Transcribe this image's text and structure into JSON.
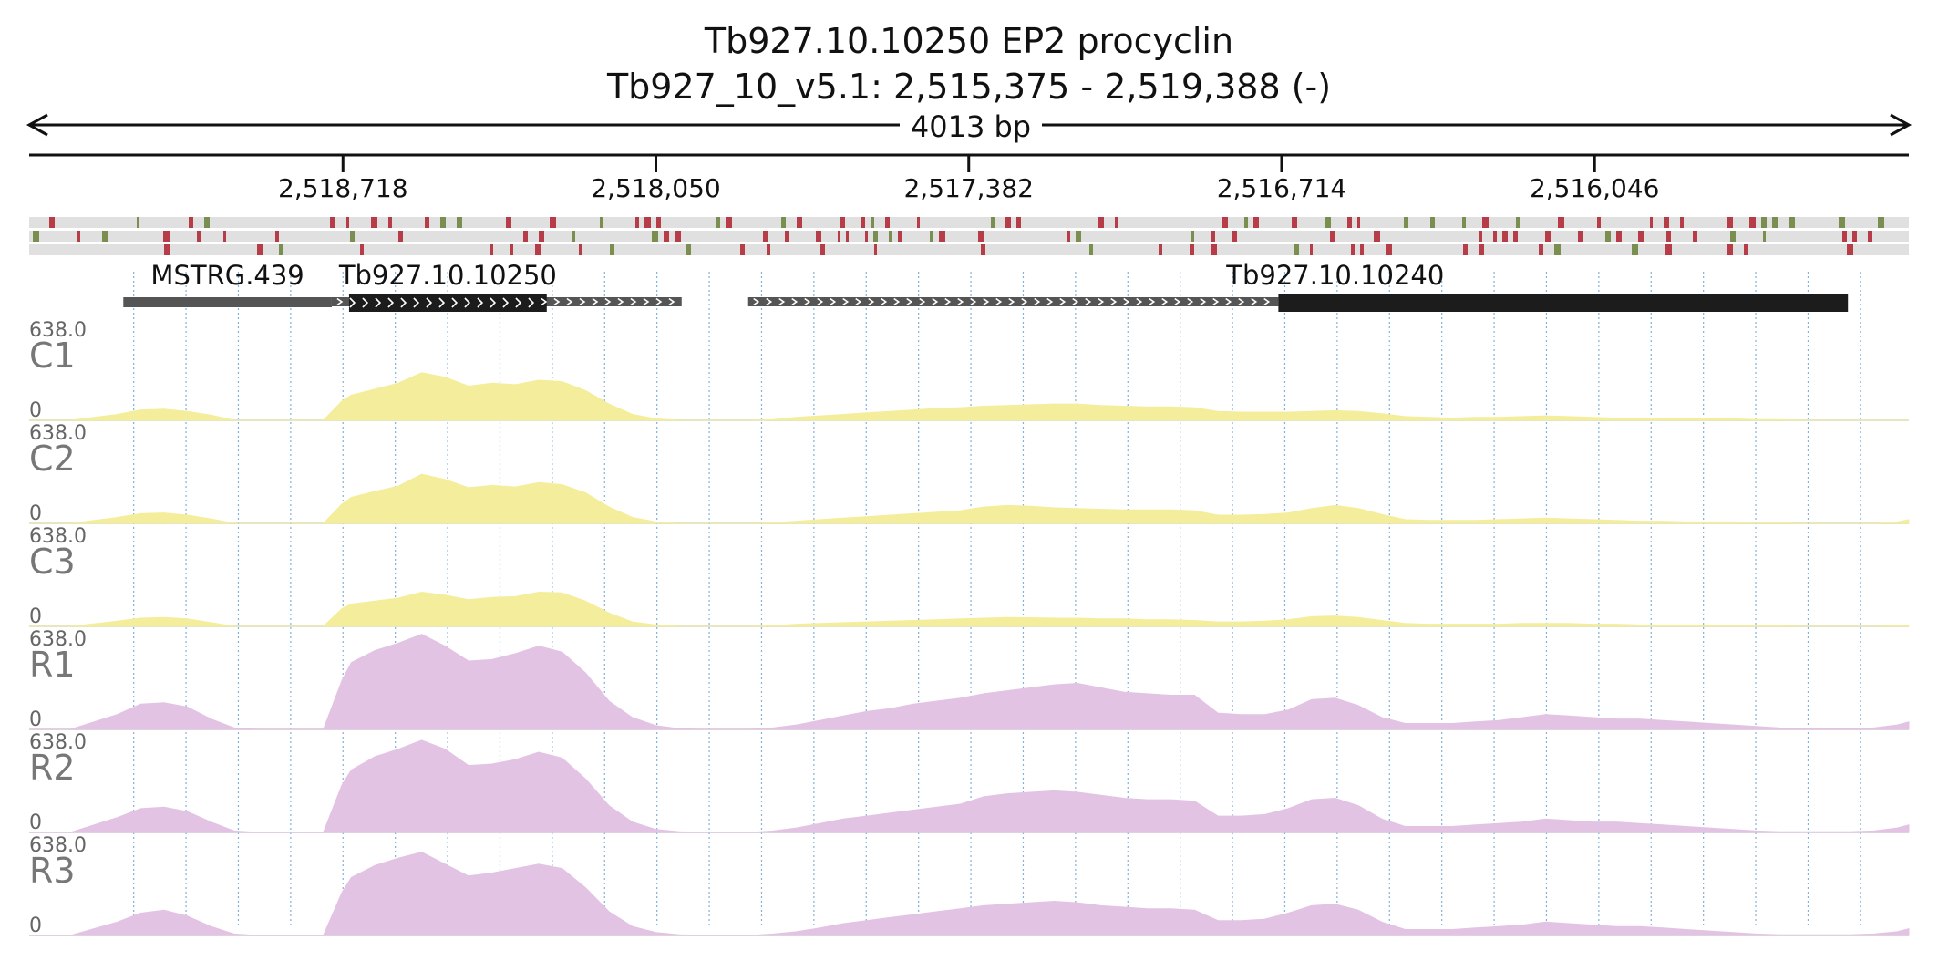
{
  "chart_data": {
    "type": "area",
    "title": "Tb927.10.10250  EP2 procyclin",
    "subtitle": "Tb927_10_v5.1: 2,515,375 - 2,519,388 (-)",
    "span_label": "4013 bp",
    "region": {
      "start": 2515375,
      "end": 2519388,
      "strand": "-"
    },
    "ruler_ticks": [
      {
        "pos": 2518718,
        "label": "2,518,718"
      },
      {
        "pos": 2518050,
        "label": "2,518,050"
      },
      {
        "pos": 2517382,
        "label": "2,517,382"
      },
      {
        "pos": 2516714,
        "label": "2,516,714"
      },
      {
        "pos": 2516046,
        "label": "2,516,046"
      }
    ],
    "frame_bars": {
      "colors": {
        "track": "#e0e0e0",
        "start": "#7a8f4f",
        "stop": "#b63d48"
      },
      "frames": [
        {
          "seed": 11,
          "density": 0.42
        },
        {
          "seed": 23,
          "density": 0.36
        },
        {
          "seed": 37,
          "density": 0.22
        }
      ]
    },
    "genes": [
      {
        "name": "MSTRG.439",
        "start": 2519187,
        "end": 2518742,
        "utr_start": null,
        "utr_end": null,
        "style": "plain"
      },
      {
        "name": "Tb927.10.10250",
        "start": 2518705,
        "end": 2518283,
        "utr_start": 2518742,
        "utr_end": 2517995,
        "style": "cds"
      },
      {
        "name": "Tb927.10.10240",
        "start": 2516721,
        "end": 2515505,
        "utr_start": 2517853,
        "utr_end": 2516721,
        "style": "cds"
      }
    ],
    "ymax_label": "638.0",
    "ymin_label": "0",
    "ylim": [
      0,
      638
    ],
    "x_positions": [
      2519388,
      2519300,
      2519200,
      2519150,
      2519100,
      2519050,
      2519000,
      2518950,
      2518900,
      2518850,
      2518800,
      2518760,
      2518720,
      2518700,
      2518650,
      2518600,
      2518550,
      2518500,
      2518450,
      2518400,
      2518350,
      2518300,
      2518250,
      2518200,
      2518150,
      2518100,
      2518050,
      2518000,
      2517950,
      2517900,
      2517850,
      2517800,
      2517750,
      2517700,
      2517650,
      2517600,
      2517550,
      2517500,
      2517450,
      2517400,
      2517350,
      2517300,
      2517250,
      2517200,
      2517150,
      2517100,
      2517050,
      2517000,
      2516950,
      2516900,
      2516850,
      2516800,
      2516750,
      2516700,
      2516650,
      2516600,
      2516550,
      2516500,
      2516450,
      2516400,
      2516350,
      2516300,
      2516250,
      2516200,
      2516150,
      2516100,
      2516050,
      2516000,
      2515950,
      2515900,
      2515850,
      2515800,
      2515750,
      2515700,
      2515650,
      2515600,
      2515550,
      2515500,
      2515450,
      2515400,
      2515375
    ],
    "series": [
      {
        "name": "C1",
        "color": "#f4ee9c",
        "values": [
          0,
          0,
          40,
          70,
          75,
          60,
          35,
          0,
          0,
          0,
          0,
          0,
          130,
          170,
          210,
          250,
          320,
          290,
          230,
          250,
          240,
          270,
          260,
          200,
          110,
          40,
          10,
          0,
          0,
          0,
          0,
          5,
          20,
          30,
          40,
          50,
          60,
          70,
          80,
          85,
          95,
          100,
          105,
          110,
          110,
          100,
          95,
          90,
          90,
          85,
          60,
          55,
          55,
          55,
          60,
          65,
          60,
          45,
          25,
          20,
          15,
          20,
          20,
          25,
          30,
          25,
          20,
          15,
          15,
          10,
          10,
          10,
          10,
          5,
          5,
          0,
          0,
          0,
          0,
          0,
          0
        ]
      },
      {
        "name": "C2",
        "color": "#f4ee9c",
        "values": [
          0,
          0,
          40,
          65,
          70,
          55,
          30,
          0,
          0,
          0,
          0,
          0,
          130,
          175,
          215,
          250,
          330,
          295,
          240,
          255,
          245,
          275,
          260,
          205,
          110,
          40,
          10,
          0,
          0,
          0,
          0,
          5,
          15,
          25,
          35,
          45,
          55,
          65,
          75,
          85,
          110,
          120,
          115,
          105,
          100,
          95,
          90,
          90,
          90,
          85,
          55,
          55,
          60,
          70,
          100,
          120,
          100,
          60,
          25,
          20,
          20,
          20,
          25,
          30,
          35,
          30,
          25,
          20,
          15,
          15,
          10,
          10,
          10,
          5,
          5,
          0,
          0,
          0,
          0,
          10,
          25
        ]
      },
      {
        "name": "C3",
        "color": "#f4ee9c",
        "values": [
          0,
          0,
          35,
          55,
          60,
          50,
          25,
          0,
          0,
          0,
          0,
          0,
          120,
          150,
          170,
          190,
          230,
          210,
          180,
          195,
          200,
          230,
          225,
          170,
          90,
          30,
          10,
          0,
          0,
          0,
          0,
          5,
          15,
          20,
          25,
          30,
          35,
          40,
          45,
          50,
          55,
          60,
          58,
          55,
          55,
          50,
          50,
          45,
          45,
          40,
          30,
          30,
          35,
          45,
          65,
          70,
          60,
          40,
          20,
          15,
          15,
          15,
          15,
          20,
          20,
          20,
          15,
          15,
          10,
          10,
          10,
          10,
          5,
          5,
          5,
          0,
          0,
          0,
          0,
          5,
          10
        ]
      },
      {
        "name": "R1",
        "color": "#e3c3e3",
        "values": [
          0,
          0,
          100,
          170,
          180,
          150,
          70,
          10,
          0,
          0,
          0,
          0,
          330,
          450,
          530,
          580,
          640,
          560,
          460,
          470,
          510,
          560,
          520,
          380,
          190,
          80,
          25,
          5,
          0,
          0,
          0,
          10,
          30,
          60,
          90,
          120,
          140,
          170,
          190,
          210,
          240,
          260,
          280,
          300,
          310,
          280,
          250,
          240,
          230,
          230,
          110,
          100,
          100,
          130,
          200,
          210,
          160,
          80,
          40,
          40,
          40,
          50,
          60,
          80,
          100,
          90,
          80,
          70,
          70,
          60,
          50,
          40,
          30,
          20,
          10,
          5,
          5,
          5,
          10,
          30,
          50
        ]
      },
      {
        "name": "R2",
        "color": "#e3c3e3",
        "values": [
          0,
          0,
          100,
          160,
          170,
          140,
          70,
          10,
          0,
          0,
          0,
          0,
          320,
          420,
          510,
          560,
          620,
          560,
          450,
          460,
          490,
          540,
          500,
          360,
          180,
          70,
          20,
          5,
          0,
          0,
          0,
          10,
          30,
          60,
          90,
          110,
          130,
          150,
          170,
          190,
          240,
          260,
          270,
          280,
          270,
          250,
          230,
          220,
          220,
          210,
          110,
          110,
          120,
          160,
          220,
          230,
          180,
          90,
          40,
          40,
          40,
          50,
          60,
          70,
          90,
          80,
          70,
          70,
          60,
          50,
          40,
          30,
          20,
          10,
          5,
          5,
          5,
          5,
          10,
          30,
          50
        ]
      },
      {
        "name": "R3",
        "color": "#e3c3e3",
        "values": [
          0,
          0,
          90,
          150,
          170,
          130,
          60,
          10,
          0,
          0,
          0,
          0,
          290,
          390,
          470,
          520,
          560,
          480,
          400,
          420,
          450,
          480,
          450,
          320,
          160,
          60,
          20,
          5,
          0,
          0,
          0,
          10,
          25,
          50,
          80,
          100,
          120,
          140,
          160,
          180,
          200,
          210,
          220,
          230,
          220,
          200,
          190,
          180,
          180,
          170,
          100,
          100,
          110,
          150,
          200,
          210,
          170,
          90,
          40,
          40,
          40,
          50,
          60,
          70,
          90,
          80,
          70,
          60,
          60,
          50,
          40,
          30,
          20,
          10,
          5,
          5,
          5,
          5,
          10,
          25,
          45
        ]
      }
    ]
  }
}
